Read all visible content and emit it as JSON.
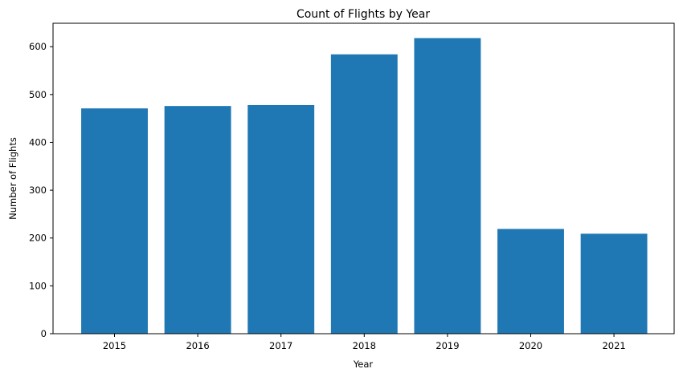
{
  "chart_data": {
    "type": "bar",
    "title": "Count of Flights by Year",
    "xlabel": "Year",
    "ylabel": "Number of Flights",
    "categories": [
      "2015",
      "2016",
      "2017",
      "2018",
      "2019",
      "2020",
      "2021"
    ],
    "values": [
      471,
      476,
      478,
      584,
      618,
      219,
      209
    ],
    "ylim": [
      0,
      649
    ],
    "yticks": [
      0,
      100,
      200,
      300,
      400,
      500,
      600
    ],
    "bar_color": "#1f77b4",
    "grid": false,
    "legend": "none"
  }
}
